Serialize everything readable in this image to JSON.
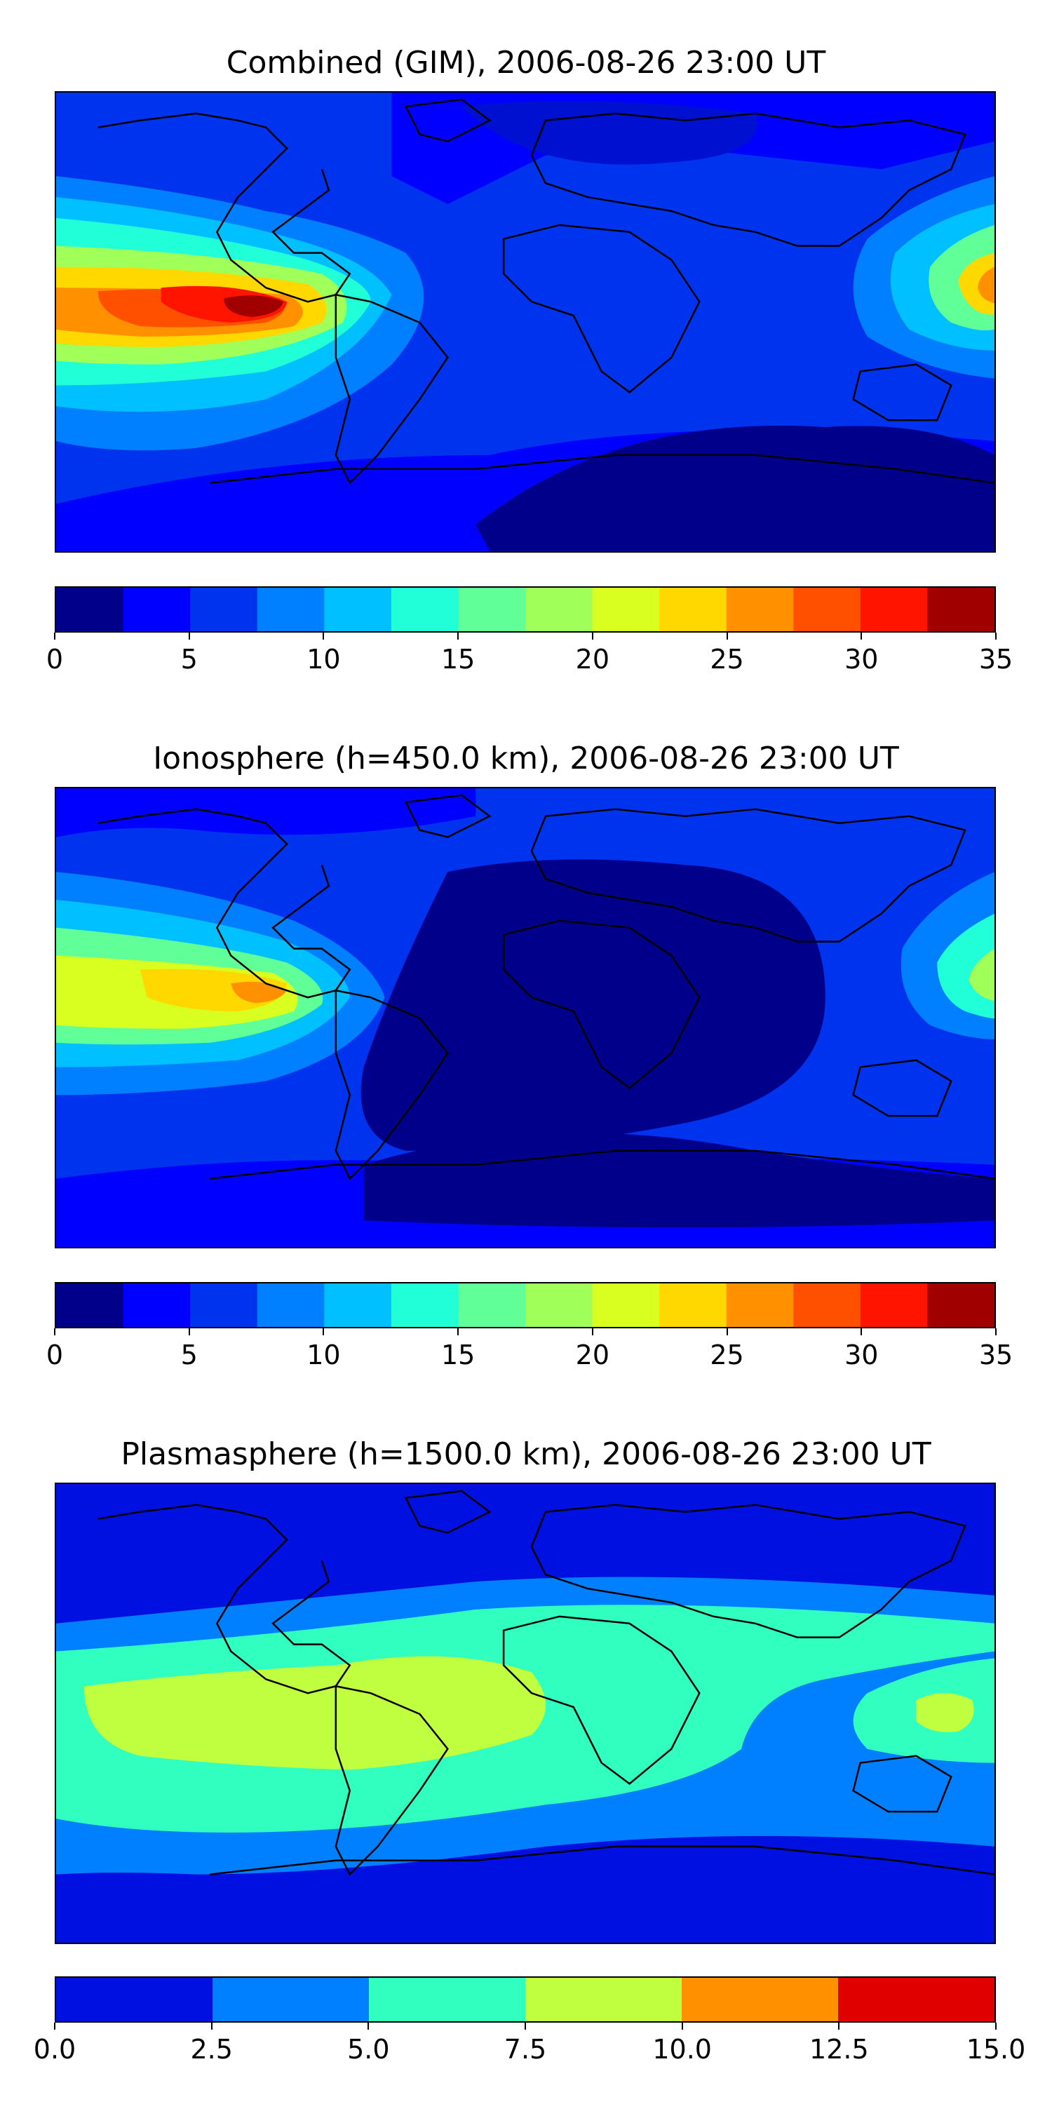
{
  "panels": [
    {
      "title": "Combined (GIM), 2006-08-26 23:00 UT",
      "colorbar": {
        "bounds": [
          0,
          2.5,
          5,
          7.5,
          10,
          12.5,
          15,
          17.5,
          20,
          22.5,
          25,
          27.5,
          30,
          32.5,
          35
        ],
        "colors": [
          "#00008b",
          "#0000ff",
          "#0033ee",
          "#0080ff",
          "#00c0ff",
          "#20ffd8",
          "#60ff98",
          "#a0ff58",
          "#d8ff20",
          "#ffd800",
          "#ff9000",
          "#ff5000",
          "#ff1400",
          "#a00000"
        ],
        "ticks": [
          "0",
          "5",
          "10",
          "15",
          "20",
          "25",
          "30",
          "35"
        ],
        "tick_values": [
          0,
          5,
          10,
          15,
          20,
          25,
          30,
          35
        ]
      }
    },
    {
      "title": "Ionosphere  (h=450.0 km), 2006-08-26 23:00 UT",
      "colorbar": {
        "bounds": [
          0,
          2.5,
          5,
          7.5,
          10,
          12.5,
          15,
          17.5,
          20,
          22.5,
          25,
          27.5,
          30,
          32.5,
          35
        ],
        "colors": [
          "#00008b",
          "#0000ff",
          "#0033ee",
          "#0080ff",
          "#00c0ff",
          "#20ffd8",
          "#60ff98",
          "#a0ff58",
          "#d8ff20",
          "#ffd800",
          "#ff9000",
          "#ff5000",
          "#ff1400",
          "#a00000"
        ],
        "ticks": [
          "0",
          "5",
          "10",
          "15",
          "20",
          "25",
          "30",
          "35"
        ],
        "tick_values": [
          0,
          5,
          10,
          15,
          20,
          25,
          30,
          35
        ]
      }
    },
    {
      "title": "Plasmasphere (h=1500.0 km), 2006-08-26 23:00 UT",
      "colorbar": {
        "bounds": [
          0,
          2.5,
          5,
          7.5,
          10,
          12.5,
          15
        ],
        "colors": [
          "#0010e0",
          "#0080ff",
          "#30ffc0",
          "#c0ff40",
          "#ff9000",
          "#e00000"
        ],
        "ticks": [
          "0.0",
          "2.5",
          "5.0",
          "7.5",
          "10.0",
          "12.5",
          "15.0"
        ],
        "tick_values": [
          0,
          2.5,
          5,
          7.5,
          10,
          12.5,
          15
        ]
      }
    }
  ]
}
